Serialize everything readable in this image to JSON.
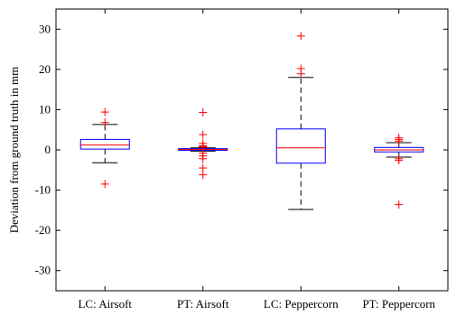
{
  "chart_data": {
    "type": "boxplot",
    "title": "",
    "xlabel": "",
    "ylabel": "Deviation from ground truth in mm",
    "ylim": [
      -35,
      35
    ],
    "yticks": [
      -30,
      -20,
      -10,
      0,
      10,
      20,
      30
    ],
    "grid": false,
    "legend": "none",
    "categories": [
      "LC: Airsoft",
      "PT: Airsoft",
      "LC: Peppercorn",
      "PT: Peppercorn"
    ],
    "boxes": [
      {
        "whisker_low": -3.2,
        "q1": 0.2,
        "median": 1.2,
        "q3": 2.6,
        "whisker_high": 6.3,
        "outliers": [
          9.4,
          6.8,
          -8.5
        ]
      },
      {
        "whisker_low": -0.3,
        "q1": -0.1,
        "median": 0.1,
        "q3": 0.3,
        "whisker_high": 0.5,
        "outliers": [
          9.3,
          3.8,
          1.6,
          1.0,
          0.9,
          0.7,
          -0.8,
          -1.5,
          -2.2,
          -4.5,
          -6.2
        ]
      },
      {
        "whisker_low": -14.8,
        "q1": -3.3,
        "median": 0.5,
        "q3": 5.2,
        "whisker_high": 18.0,
        "outliers": [
          28.3,
          20.2,
          18.9
        ]
      },
      {
        "whisker_low": -1.8,
        "q1": -0.5,
        "median": 0.0,
        "q3": 0.6,
        "whisker_high": 1.8,
        "outliers": [
          3.0,
          2.6,
          2.2,
          -2.2,
          -2.6,
          -13.6
        ]
      }
    ],
    "colors": {
      "box": "#0000ff",
      "median": "#ff0000",
      "whisker": "#000000",
      "outlier": "#ff0000",
      "axis": "#000000"
    }
  }
}
